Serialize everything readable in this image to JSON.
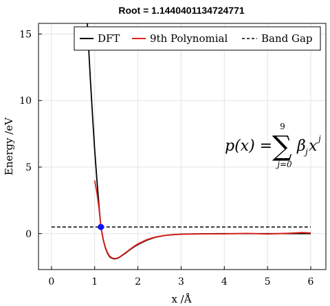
{
  "chart_data": {
    "type": "line",
    "title": "Root = 1.1440401134724771",
    "xlabel": "x /Å",
    "ylabel": "Energy /eV",
    "xlim": [
      -0.3,
      6.35
    ],
    "ylim": [
      -2.7,
      15.8
    ],
    "x_ticks": [
      0,
      1,
      2,
      3,
      4,
      5,
      6
    ],
    "y_ticks": [
      0,
      5,
      10,
      15
    ],
    "grid": true,
    "legend_position": "top-right",
    "series": [
      {
        "name": "DFT",
        "color": "#000000",
        "style": "solid",
        "x": [
          0.83,
          0.86,
          0.9,
          0.95,
          1.0,
          1.05,
          1.1,
          1.144,
          1.2,
          1.25,
          1.3,
          1.35,
          1.4,
          1.45,
          1.5,
          1.55,
          1.6,
          1.7,
          1.8,
          1.9,
          2.0,
          2.2,
          2.4,
          2.6,
          2.8,
          3.0,
          3.3,
          3.6,
          4.0,
          4.5,
          5.0,
          5.5,
          6.0
        ],
        "y": [
          15.8,
          14.0,
          11.6,
          8.9,
          6.3,
          4.1,
          2.1,
          0.5,
          -0.5,
          -1.1,
          -1.5,
          -1.75,
          -1.85,
          -1.9,
          -1.88,
          -1.82,
          -1.72,
          -1.5,
          -1.25,
          -1.02,
          -0.82,
          -0.5,
          -0.28,
          -0.15,
          -0.08,
          -0.04,
          -0.02,
          -0.01,
          0.0,
          0.0,
          0.0,
          0.0,
          0.0
        ]
      },
      {
        "name": "9th Polynomial",
        "color": "#e0201b",
        "style": "solid",
        "x": [
          1.0,
          1.05,
          1.1,
          1.144,
          1.2,
          1.25,
          1.3,
          1.35,
          1.4,
          1.45,
          1.5,
          1.55,
          1.6,
          1.7,
          1.8,
          1.9,
          2.0,
          2.2,
          2.4,
          2.6,
          2.8,
          3.0,
          3.3,
          3.6,
          4.0,
          4.5,
          5.0,
          5.5,
          5.8,
          6.0
        ],
        "y": [
          4.0,
          3.1,
          1.9,
          0.5,
          -0.45,
          -1.05,
          -1.45,
          -1.7,
          -1.82,
          -1.87,
          -1.86,
          -1.8,
          -1.7,
          -1.47,
          -1.22,
          -0.98,
          -0.77,
          -0.46,
          -0.26,
          -0.14,
          -0.08,
          -0.05,
          -0.03,
          -0.02,
          -0.02,
          0.02,
          -0.03,
          0.03,
          0.08,
          0.05
        ]
      },
      {
        "name": "Band Gap",
        "color": "#000000",
        "style": "dashed",
        "x": [
          0.0,
          6.0
        ],
        "y": [
          0.5,
          0.5
        ]
      }
    ],
    "root_point": {
      "x": 1.1440401134724771,
      "y": 0.5,
      "color": "#1010ff"
    },
    "annotation": {
      "lhs": "p(x) = ",
      "sum_symbol": "∑",
      "upper_limit": "9",
      "lower_limit": "j=0",
      "term_base": "β",
      "term_sub": "j",
      "term_var": "x",
      "term_sup": "j"
    }
  }
}
